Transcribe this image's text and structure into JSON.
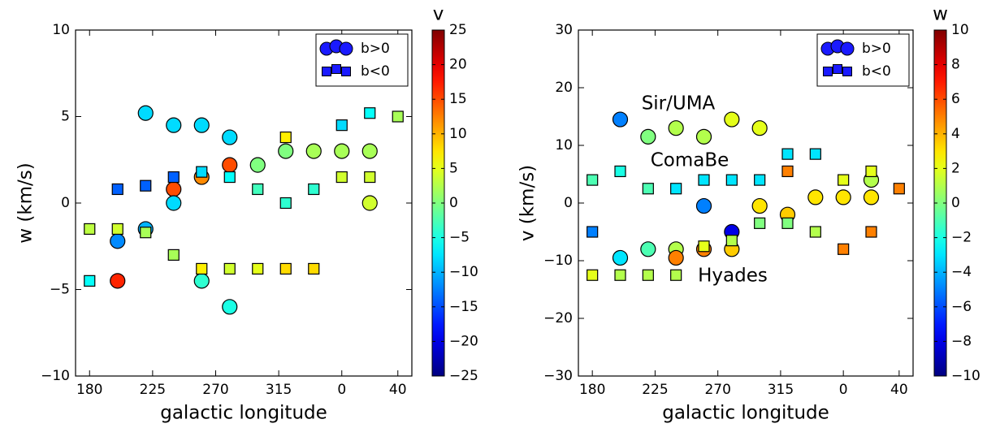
{
  "chart_data": [
    {
      "type": "scatter",
      "x_label": "galactic longitude",
      "y_label": "w (km/s)",
      "xlim": [
        170,
        410
      ],
      "ylim": [
        -10,
        10
      ],
      "xticks": [
        180,
        225,
        270,
        315,
        {
          "value": 360,
          "label": "0"
        },
        {
          "value": 400,
          "label": "40"
        }
      ],
      "yticks": [
        {
          "value": -10,
          "label": "−10"
        },
        {
          "value": -5,
          "label": "−5"
        },
        0,
        5,
        10
      ],
      "legend": "upper right",
      "colorbar": {
        "label": "v",
        "colormap": "jet",
        "clim": [
          -25,
          25
        ],
        "ticks": [
          {
            "value": -25,
            "label": "−25"
          },
          {
            "value": -20,
            "label": "−20"
          },
          {
            "value": -15,
            "label": "−15"
          },
          {
            "value": -10,
            "label": "−10"
          },
          {
            "value": -5,
            "label": "−5"
          },
          0,
          5,
          10,
          15,
          20,
          25
        ]
      },
      "series": [
        {
          "name": "b>0",
          "marker": "circle",
          "color": "#1a1aff",
          "x": [
            200,
            200,
            220,
            220,
            240,
            240,
            240,
            260,
            260,
            260,
            280,
            280,
            280,
            300,
            320,
            340,
            360,
            380,
            380
          ],
          "values": [
            -2.2,
            -4.5,
            5.2,
            -1.5,
            4.5,
            0.8,
            0,
            4.5,
            1.5,
            -4.5,
            3.8,
            2.2,
            -6,
            2.2,
            3,
            3,
            3,
            3,
            0
          ],
          "c": [
            -12,
            17,
            -8,
            -10,
            -8,
            15,
            -8,
            -8,
            12,
            -4,
            -8,
            15,
            -5,
            0,
            0,
            2,
            2,
            2,
            4
          ]
        },
        {
          "name": "b<0",
          "marker": "square",
          "color": "#1a1aff",
          "x": [
            180,
            180,
            200,
            200,
            220,
            220,
            240,
            240,
            260,
            260,
            280,
            280,
            300,
            300,
            320,
            320,
            320,
            340,
            340,
            360,
            360,
            380,
            380,
            400
          ],
          "values": [
            -4.5,
            -1.5,
            0.8,
            -1.5,
            1,
            -1.7,
            1.5,
            -3,
            1.8,
            -3.8,
            1.5,
            -3.8,
            0.8,
            -3.8,
            0,
            3.8,
            -3.8,
            0.8,
            -3.8,
            4.5,
            1.5,
            5.2,
            1.5,
            5
          ],
          "c": [
            -6,
            3,
            -14,
            4,
            -14,
            2,
            -14,
            2,
            -8,
            7,
            -6,
            4,
            -3,
            5,
            -4,
            7,
            8,
            -4,
            8,
            -8,
            4,
            -6,
            4,
            2
          ]
        }
      ]
    },
    {
      "type": "scatter",
      "x_label": "galactic longitude",
      "y_label": "v (km/s)",
      "xlim": [
        170,
        410
      ],
      "ylim": [
        -30,
        30
      ],
      "xticks": [
        180,
        225,
        270,
        315,
        {
          "value": 360,
          "label": "0"
        },
        {
          "value": 400,
          "label": "40"
        }
      ],
      "yticks": [
        {
          "value": -30,
          "label": "−30"
        },
        {
          "value": -20,
          "label": "−20"
        },
        {
          "value": -10,
          "label": "−10"
        },
        0,
        10,
        20,
        30
      ],
      "legend": "upper right",
      "colorbar": {
        "label": "w",
        "colormap": "jet",
        "clim": [
          -10,
          10
        ],
        "ticks": [
          {
            "value": -10,
            "label": "−10"
          },
          {
            "value": -8,
            "label": "−8"
          },
          {
            "value": -6,
            "label": "−6"
          },
          {
            "value": -4,
            "label": "−4"
          },
          {
            "value": -2,
            "label": "−2"
          },
          0,
          2,
          4,
          6,
          8,
          10
        ]
      },
      "annotations": [
        {
          "text": "Sir/UMA",
          "color": "#1a1aee"
        },
        {
          "text": "ComaBe",
          "color": "#1a1aee"
        },
        {
          "text": "Hyades",
          "color": "#1a8a1a"
        }
      ],
      "series": [
        {
          "name": "b>0",
          "marker": "circle",
          "color": "#1a1aff",
          "x": [
            200,
            200,
            220,
            220,
            240,
            240,
            240,
            260,
            260,
            260,
            280,
            280,
            280,
            300,
            300,
            320,
            340,
            360,
            380,
            380
          ],
          "values": [
            14.5,
            -9.5,
            11.5,
            -8,
            13,
            -8,
            -9.5,
            11.5,
            -0.5,
            -8,
            14.5,
            -5,
            -8,
            13,
            -0.5,
            -2,
            1,
            1,
            1,
            4
          ],
          "c": [
            -5,
            -3,
            0,
            -1,
            1,
            1,
            5,
            1,
            -5,
            5,
            2,
            -8,
            3.5,
            2,
            3,
            3.5,
            3,
            3,
            3,
            1
          ]
        },
        {
          "name": "b<0",
          "marker": "square",
          "color": "#1a1aff",
          "x": [
            180,
            180,
            180,
            200,
            200,
            220,
            220,
            240,
            240,
            260,
            260,
            280,
            280,
            300,
            300,
            320,
            320,
            320,
            340,
            340,
            360,
            360,
            380,
            380,
            400
          ],
          "values": [
            4,
            -5,
            -12.5,
            5.5,
            -12.5,
            2.5,
            -12.5,
            2.5,
            -12.5,
            4,
            -7.5,
            4,
            -6.5,
            4,
            -3.5,
            8.5,
            5.5,
            -3.5,
            8.5,
            -5,
            4,
            -8,
            5.5,
            -5,
            2.5
          ],
          "c": [
            -1,
            -5,
            2,
            -2,
            1,
            -1,
            1,
            -3,
            1,
            -3,
            2,
            -3,
            1,
            -3,
            0,
            -3,
            5,
            0,
            -3,
            1,
            2,
            5,
            2,
            5,
            5
          ]
        }
      ]
    }
  ]
}
